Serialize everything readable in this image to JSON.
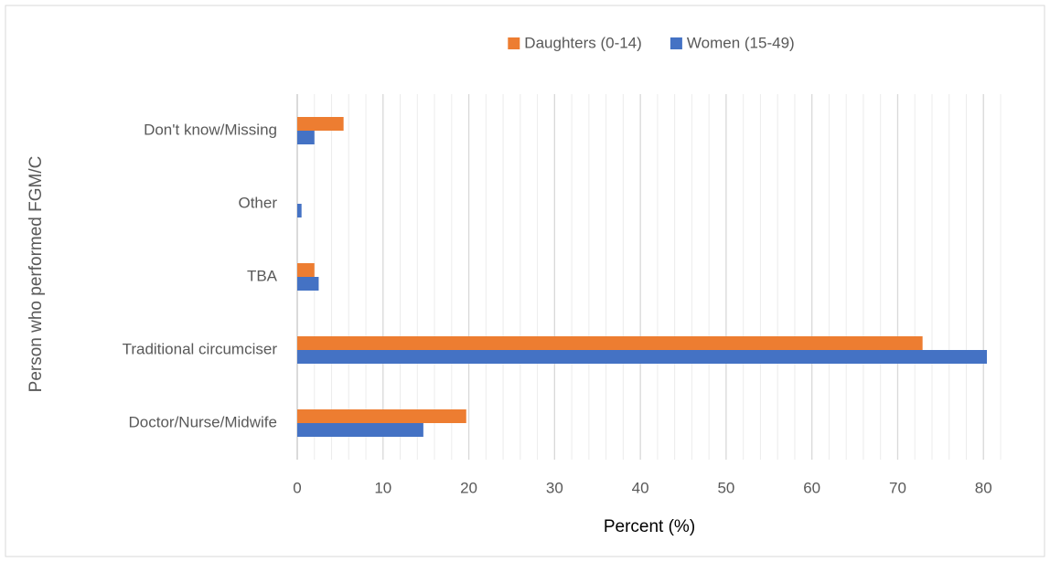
{
  "chart_data": {
    "type": "bar",
    "orientation": "horizontal",
    "xlabel": "Percent (%)",
    "ylabel": "Person who performed FGM/C",
    "categories": [
      "Doctor/Nurse/Midwife",
      "Traditional circumciser",
      "TBA",
      "Other",
      "Don't know/Missing"
    ],
    "series": [
      {
        "name": "Daughters (0-14)",
        "color": "#ed7d31",
        "values": [
          19.7,
          72.9,
          2.0,
          0,
          5.4
        ]
      },
      {
        "name": "Women (15-49)",
        "color": "#4472c4",
        "values": [
          14.7,
          80.4,
          2.5,
          0.5,
          2.0
        ]
      }
    ],
    "xlim": [
      0,
      82
    ],
    "xticks": [
      0,
      10,
      20,
      30,
      40,
      50,
      60,
      70,
      80
    ],
    "minor_grid_step": 2,
    "grid": true,
    "legend": "top"
  }
}
